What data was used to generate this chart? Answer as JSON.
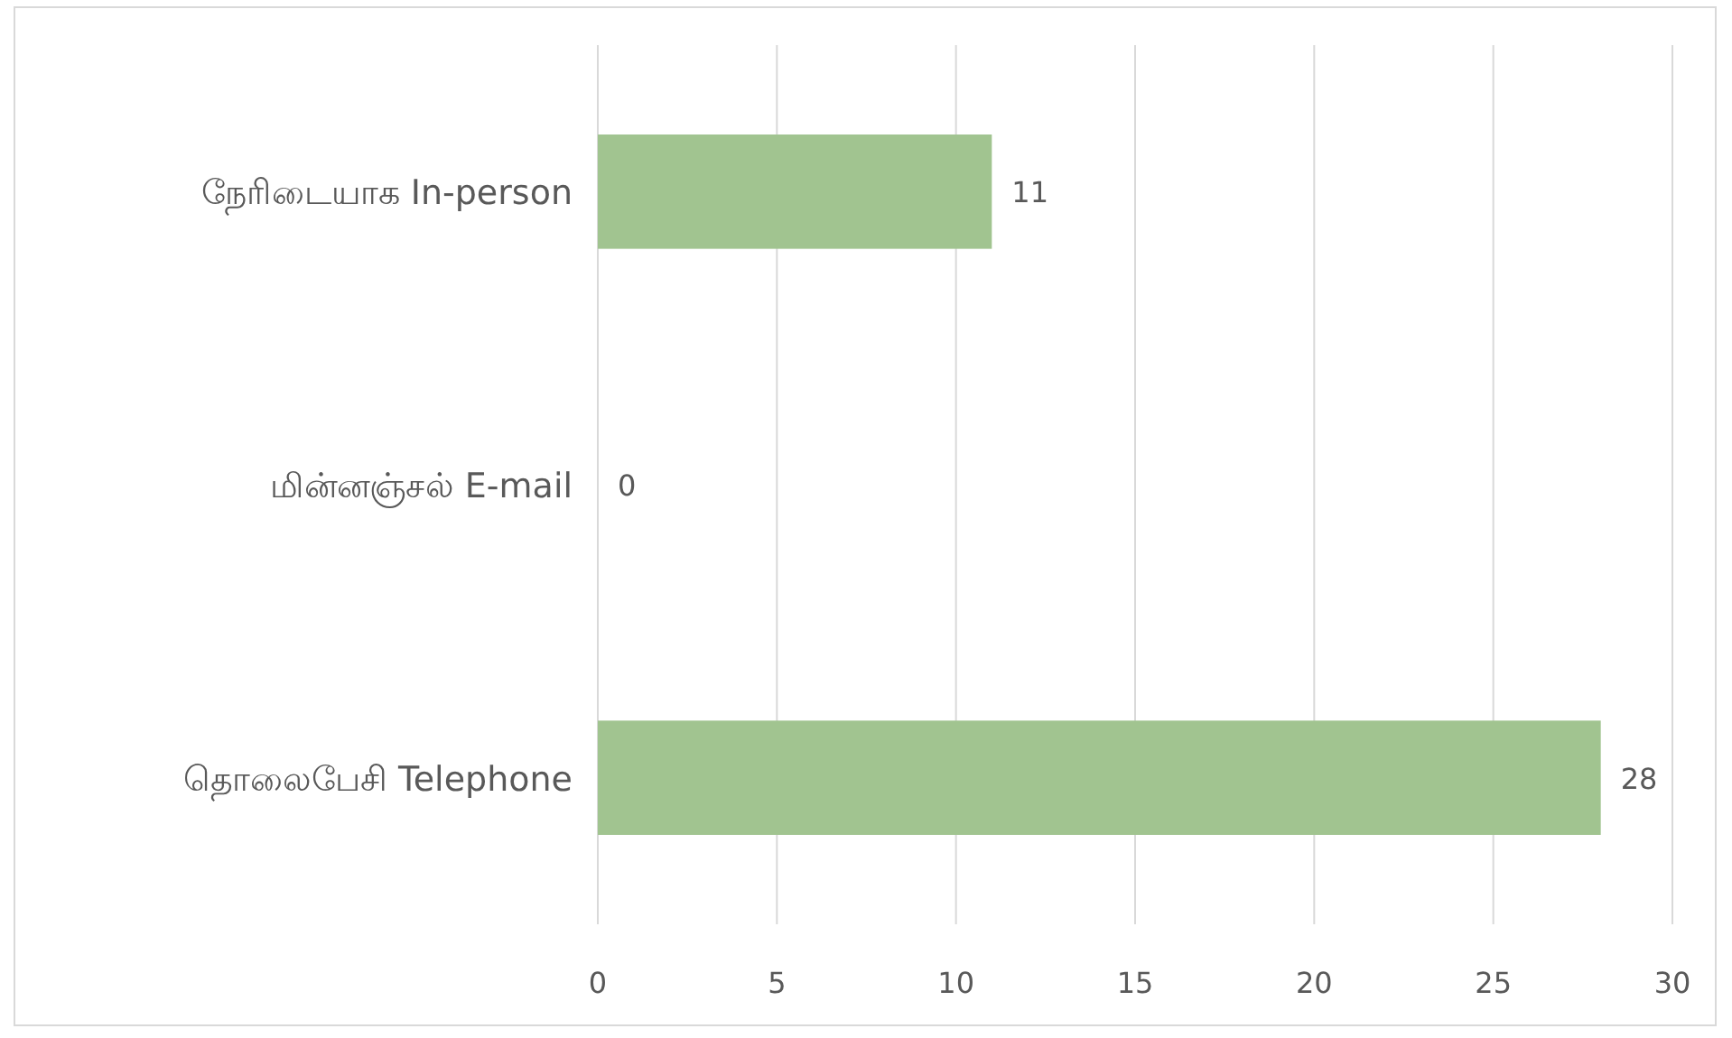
{
  "chart_data": {
    "type": "bar",
    "orientation": "horizontal",
    "categories": [
      "நேரிடையாக In-person",
      "மின்னஞ்சல் E-mail",
      "தொலைபேசி Telephone"
    ],
    "values": [
      11,
      0,
      28
    ],
    "color": "#a1c490",
    "xlim": [
      0,
      30
    ],
    "xticks": [
      0,
      5,
      10,
      15,
      20,
      25,
      30
    ],
    "grid": "x",
    "data_labels": true
  }
}
